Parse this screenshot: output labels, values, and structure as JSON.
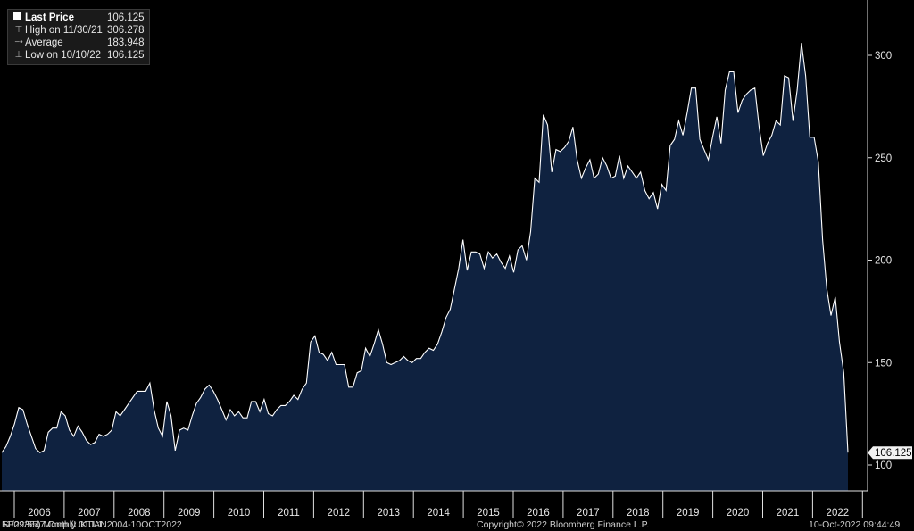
{
  "legend": {
    "items": [
      {
        "symbol": "square",
        "label": "Last Price",
        "value": "106.125"
      },
      {
        "symbol": "high",
        "label": "High on 11/30/21",
        "value": "306.278"
      },
      {
        "symbol": "average",
        "label": "Average",
        "value": "183.948"
      },
      {
        "symbol": "low",
        "label": "Low on 10/10/22",
        "value": "106.125"
      }
    ]
  },
  "footer": {
    "security": "EF093647 Corp (UKTI 1 ",
    "security_tail": " 11/22/55)  Monthly 01JAN2004-10OCT2022",
    "copyright": "Copyright© 2022 Bloomberg Finance L.P.",
    "timestamp": "10-Oct-2022 09:44:49"
  },
  "colors": {
    "background": "#000000",
    "area_fill": "#0f2240",
    "line": "#ffffff"
  },
  "chart_data": {
    "type": "area",
    "title": "",
    "xlabel": "",
    "ylabel": "",
    "frequency": "monthly",
    "x_start": "2005-01",
    "x_end": "2022-10",
    "ylim": [
      85,
      325
    ],
    "y_ticks": [
      100,
      150,
      200,
      250,
      300
    ],
    "x_tick_labels": [
      "2006",
      "2007",
      "2008",
      "2009",
      "2010",
      "2011",
      "2012",
      "2013",
      "2014",
      "2015",
      "2016",
      "2017",
      "2018",
      "2019",
      "2020",
      "2021",
      "2022"
    ],
    "grid": false,
    "legend_position": "top-left",
    "last_value_label": "106.125",
    "series": [
      {
        "name": "Last Price",
        "values": [
          106,
          109,
          114,
          120,
          128,
          127,
          120,
          114,
          108,
          106,
          107,
          116,
          118,
          118,
          126,
          124,
          117,
          114,
          119,
          116,
          112,
          110,
          111,
          115,
          114,
          115,
          117,
          126,
          124,
          127,
          130,
          133,
          136,
          136,
          136,
          140,
          127,
          118,
          114,
          131,
          124,
          107,
          117,
          118,
          117,
          124,
          130,
          133,
          137,
          139,
          136,
          132,
          127,
          122,
          127,
          124,
          126,
          123,
          123,
          131,
          131,
          126,
          132,
          125,
          124,
          127,
          129,
          129,
          131,
          134,
          132,
          137,
          140,
          160,
          163,
          155,
          154,
          151,
          155,
          149,
          149,
          149,
          138,
          138,
          145,
          146,
          157,
          153,
          159,
          166,
          159,
          150,
          149,
          150,
          151,
          153,
          151,
          150,
          152,
          152,
          155,
          157,
          156,
          159,
          165,
          172,
          176,
          186,
          196,
          210,
          195,
          204,
          204,
          203,
          196,
          204,
          201,
          203,
          199,
          196,
          202,
          194,
          205,
          207,
          200,
          214,
          240,
          238,
          271,
          266,
          243,
          254,
          253,
          255,
          258,
          265,
          249,
          240,
          245,
          249,
          240,
          242,
          250,
          246,
          240,
          241,
          251,
          240,
          246,
          243,
          240,
          243,
          234,
          230,
          233,
          225,
          237,
          234,
          256,
          259,
          268,
          261,
          272,
          284,
          284,
          259,
          254,
          249,
          260,
          270,
          257,
          283,
          292,
          292,
          272,
          278,
          281,
          283,
          284,
          265,
          251,
          257,
          261,
          268,
          266,
          290,
          289,
          268,
          283,
          306,
          290,
          260,
          260,
          248,
          210,
          186,
          173,
          182,
          160,
          145,
          106
        ]
      }
    ]
  }
}
